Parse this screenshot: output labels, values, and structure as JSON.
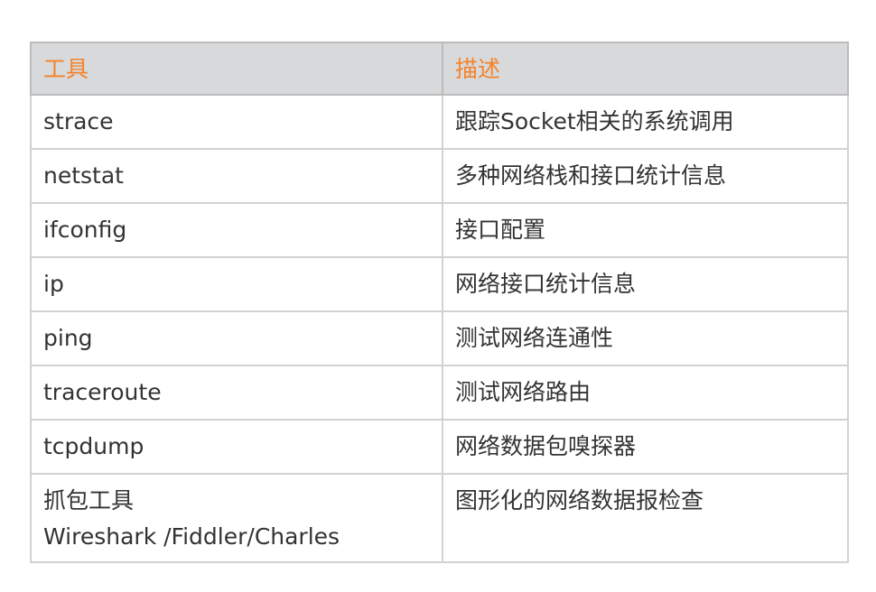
{
  "table": {
    "headers": [
      "工具",
      "描述"
    ],
    "rows": [
      {
        "tool": "strace",
        "desc": "跟踪Socket相关的系统调用"
      },
      {
        "tool": "netstat",
        "desc": "多种网络栈和接口统计信息"
      },
      {
        "tool": "ifconfig",
        "desc": "接口配置"
      },
      {
        "tool": "ip",
        "desc": "网络接口统计信息"
      },
      {
        "tool": "ping",
        "desc": "测试网络连通性"
      },
      {
        "tool": "traceroute",
        "desc": "测试网络路由"
      },
      {
        "tool": "tcpdump",
        "desc": "网络数据包嗅探器"
      },
      {
        "tool": "抓包工具",
        "tool_line2": "Wireshark /Fiddler/Charles",
        "desc": "图形化的网络数据报检查"
      }
    ],
    "colors": {
      "header_text": "#f5822a",
      "header_bg": "#d7d9db"
    }
  }
}
